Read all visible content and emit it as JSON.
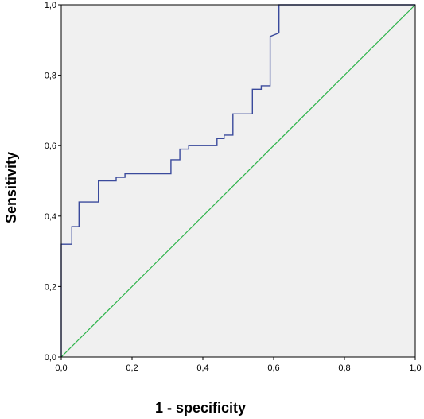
{
  "chart_data": {
    "type": "line",
    "title": "",
    "xlabel": "1 - specificity",
    "ylabel": "Sensitivity",
    "xlim": [
      0,
      1
    ],
    "ylim": [
      0,
      1
    ],
    "x_ticks": [
      "0,0",
      "0,2",
      "0,4",
      "0,6",
      "0,8",
      "1,0"
    ],
    "y_ticks": [
      "0,0",
      "0,2",
      "0,4",
      "0,6",
      "0,8",
      "1,0"
    ],
    "grid": false,
    "legend": "none",
    "series": [
      {
        "role": "roc-curve",
        "style": "step",
        "color": "#3a4a9c",
        "x": [
          0.0,
          0.0,
          0.03,
          0.03,
          0.05,
          0.05,
          0.105,
          0.105,
          0.155,
          0.155,
          0.18,
          0.18,
          0.31,
          0.31,
          0.335,
          0.335,
          0.36,
          0.36,
          0.44,
          0.44,
          0.46,
          0.46,
          0.485,
          0.485,
          0.54,
          0.54,
          0.565,
          0.565,
          0.59,
          0.59,
          0.615,
          0.615,
          1.0
        ],
        "y": [
          0.0,
          0.32,
          0.32,
          0.37,
          0.37,
          0.44,
          0.44,
          0.5,
          0.5,
          0.51,
          0.51,
          0.52,
          0.52,
          0.56,
          0.56,
          0.59,
          0.59,
          0.6,
          0.6,
          0.62,
          0.62,
          0.63,
          0.63,
          0.69,
          0.69,
          0.76,
          0.76,
          0.77,
          0.77,
          0.91,
          0.92,
          1.0,
          1.0
        ]
      },
      {
        "role": "reference-line",
        "style": "line",
        "color": "#2db34a",
        "x": [
          0,
          1
        ],
        "y": [
          0,
          1
        ]
      }
    ],
    "colors": {
      "plot_background": "#f0f0f0",
      "frame": "#000000"
    }
  }
}
